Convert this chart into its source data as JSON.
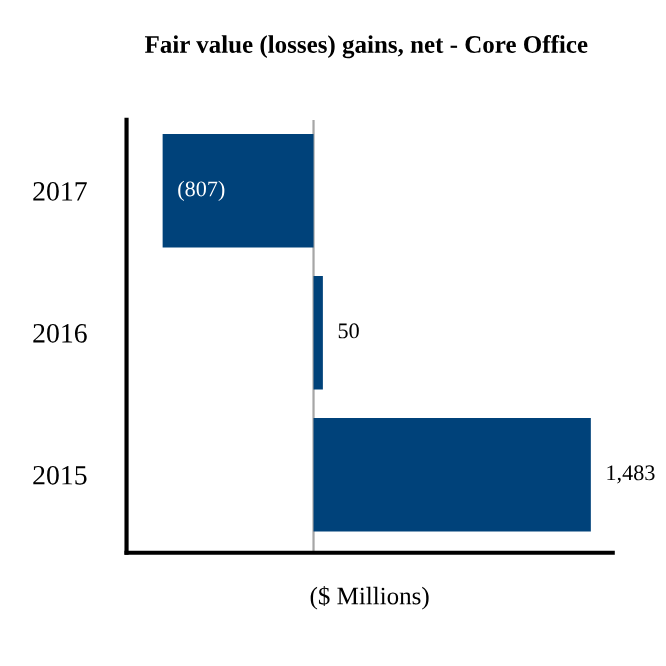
{
  "chart_data": {
    "type": "bar",
    "orientation": "horizontal",
    "title": "Fair value (losses) gains, net - Core Office",
    "xlabel": "($ Millions)",
    "categories": [
      "2017",
      "2016",
      "2015"
    ],
    "values": [
      -807,
      50,
      1483
    ],
    "value_labels": [
      "(807)",
      "50",
      "1,483"
    ],
    "color": "#00427a",
    "xlim": [
      -1000,
      1600
    ],
    "ref_lines": [
      {
        "axis": "x",
        "value": 0,
        "color": "#a6a6a6"
      }
    ],
    "tick_labels": "y",
    "grid": false,
    "legend": false
  }
}
